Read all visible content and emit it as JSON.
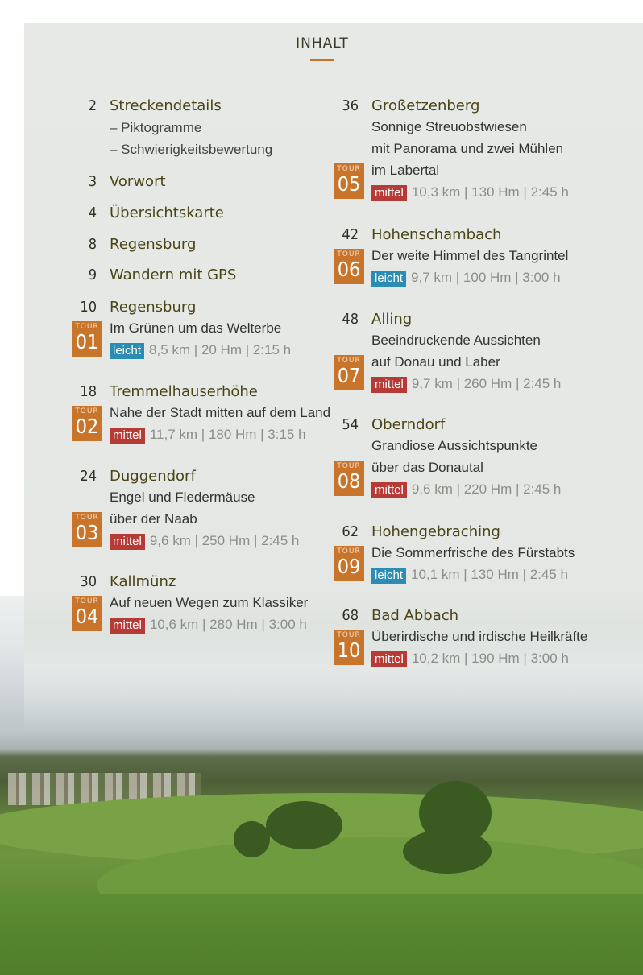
{
  "title": "INHALT",
  "front": [
    {
      "page": "2",
      "head": "Streckendetails",
      "subs": [
        "– Piktogramme",
        "– Schwierigkeitsbewertung"
      ]
    },
    {
      "page": "3",
      "head": "Vorwort"
    },
    {
      "page": "4",
      "head": "Übersichtskarte"
    },
    {
      "page": "8",
      "head": "Regensburg"
    },
    {
      "page": "9",
      "head": "Wandern mit GPS"
    }
  ],
  "tour_label": "TOUR",
  "tours": [
    {
      "page": "10",
      "head": "Regensburg",
      "desc": [
        "Im Grünen um das Welterbe"
      ],
      "no": "01",
      "level": "leicht",
      "stats": "8,5 km | 20 Hm | 2:15 h"
    },
    {
      "page": "18",
      "head": "Tremmelhauserhöhe",
      "desc": [
        "Nahe der Stadt mitten auf dem Land"
      ],
      "no": "02",
      "level": "mittel",
      "stats": "11,7 km | 180 Hm | 3:15 h"
    },
    {
      "page": "24",
      "head": "Duggendorf",
      "desc": [
        "Engel und Fledermäuse",
        "über der Naab"
      ],
      "no": "03",
      "level": "mittel",
      "stats": "9,6 km | 250 Hm | 2:45 h"
    },
    {
      "page": "30",
      "head": "Kallmünz",
      "desc": [
        "Auf neuen Wegen zum Klassiker"
      ],
      "no": "04",
      "level": "mittel",
      "stats": "10,6 km | 280 Hm | 3:00 h"
    },
    {
      "page": "36",
      "head": "Großetzenberg",
      "desc": [
        "Sonnige Streuobstwiesen",
        "mit Panorama und zwei Mühlen",
        "im Labertal"
      ],
      "no": "05",
      "level": "mittel",
      "stats": "10,3 km | 130 Hm | 2:45 h"
    },
    {
      "page": "42",
      "head": "Hohenschambach",
      "desc": [
        "Der weite Himmel des Tangrintel"
      ],
      "no": "06",
      "level": "leicht",
      "stats": "9,7 km | 100 Hm | 3:00 h"
    },
    {
      "page": "48",
      "head": "Alling",
      "desc": [
        "Beeindruckende Aussichten",
        "auf Donau und Laber"
      ],
      "no": "07",
      "level": "mittel",
      "stats": "9,7 km | 260 Hm | 2:45 h"
    },
    {
      "page": "54",
      "head": "Oberndorf",
      "desc": [
        "Grandiose Aussichtspunkte",
        "über das Donautal"
      ],
      "no": "08",
      "level": "mittel",
      "stats": "9,6 km | 220 Hm | 2:45 h"
    },
    {
      "page": "62",
      "head": "Hohengebraching",
      "desc": [
        "Die Sommerfrische des Fürstabts"
      ],
      "no": "09",
      "level": "leicht",
      "stats": "10,1 km | 130 Hm | 2:45 h"
    },
    {
      "page": "68",
      "head": "Bad Abbach",
      "desc": [
        "Überirdische und irdische Heilkräfte"
      ],
      "no": "10",
      "level": "mittel",
      "stats": "10,2 km | 190 Hm | 3:00 h"
    }
  ],
  "colors": {
    "tour": "#c8742a",
    "leicht": "#2b8db3",
    "mittel": "#b63a36",
    "heading": "#4a4516"
  }
}
